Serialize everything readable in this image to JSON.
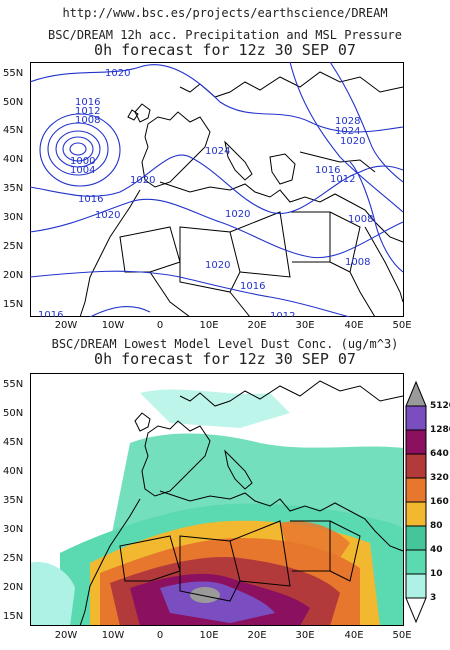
{
  "url": "http://www.bsc.es/projects/earthscience/DREAM",
  "top_panel": {
    "title_line1": "BSC/DREAM 12h acc. Precipitation and MSL Pressure",
    "title_line2": "0h forecast for 12z 30 SEP 07",
    "isobar_color": "#2233cc",
    "isobar_labels": [
      "1020",
      "1016",
      "1012",
      "1008",
      "1000",
      "1004",
      "1016",
      "1020",
      "1024",
      "1020",
      "1028",
      "1024",
      "1020",
      "1016",
      "1012",
      "1008",
      "1020",
      "1020",
      "1016",
      "1008",
      "1012",
      "1016"
    ]
  },
  "bottom_panel": {
    "title_line1": "BSC/DREAM Lowest Model Level Dust Conc. (ug/m^3)",
    "title_line2": "0h forecast for 12z 30 SEP 07"
  },
  "lat_labels": [
    "55N",
    "50N",
    "45N",
    "40N",
    "35N",
    "30N",
    "25N",
    "20N",
    "15N"
  ],
  "lon_labels": [
    "20W",
    "10W",
    "0",
    "10E",
    "20E",
    "30E",
    "40E",
    "50E"
  ],
  "legend": {
    "levels": [
      "5120",
      "1280",
      "640",
      "320",
      "160",
      "80",
      "40",
      "10",
      "3"
    ],
    "colors": [
      "#9a9a9a",
      "#7a4ec0",
      "#8b1060",
      "#b23a3a",
      "#e8772e",
      "#f2b830",
      "#46c49a",
      "#5bd9b0",
      "#aef2e6",
      "#ffffff"
    ]
  }
}
